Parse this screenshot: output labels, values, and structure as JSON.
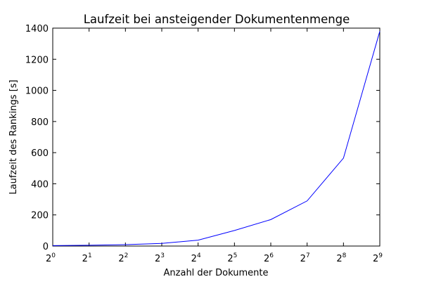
{
  "chart_data": {
    "type": "line",
    "title": "Laufzeit bei ansteigender Dokumentenmenge",
    "xlabel": "Anzahl der Dokumente",
    "ylabel": "Laufzeit des Rankings [s]",
    "x_scale": "log2",
    "x_tick_base": "2",
    "x_tick_exponents": [
      "0",
      "1",
      "2",
      "3",
      "4",
      "5",
      "6",
      "7",
      "8",
      "9"
    ],
    "y_ticks": [
      "0",
      "200",
      "400",
      "600",
      "800",
      "1000",
      "1200",
      "1400"
    ],
    "xlim": [
      1,
      512
    ],
    "ylim": [
      0,
      1400
    ],
    "grid": false,
    "line_color": "#0000ff",
    "series": [
      {
        "x": [
          1,
          2,
          4,
          8,
          16,
          32,
          64,
          128,
          256,
          512
        ],
        "y": [
          3,
          5,
          9,
          17,
          38,
          100,
          170,
          290,
          565,
          1380
        ]
      }
    ]
  }
}
